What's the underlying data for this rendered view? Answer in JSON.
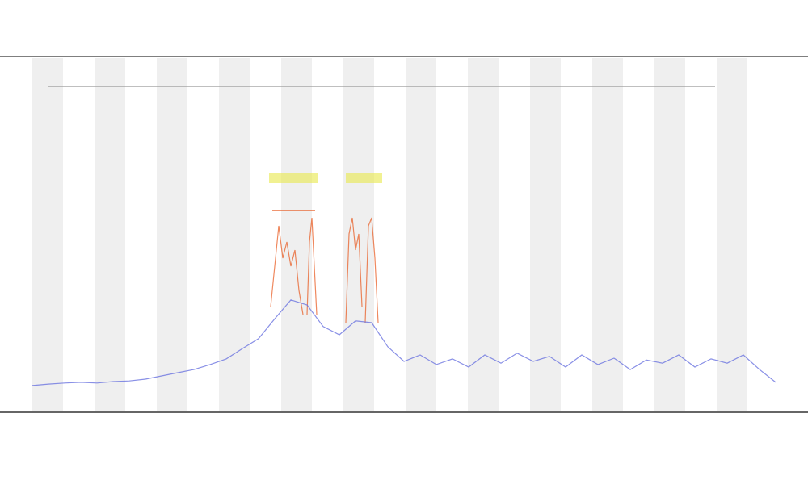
{
  "chart_data": {
    "type": "line",
    "x": [
      0,
      1,
      2,
      3,
      4,
      5,
      6,
      7,
      8,
      9,
      10,
      11,
      12,
      13,
      14,
      15,
      16,
      17,
      18,
      19,
      20,
      21,
      22,
      23,
      24,
      25,
      26,
      27,
      28,
      29,
      30,
      31,
      32,
      33,
      34,
      35,
      36,
      37,
      38,
      39,
      40,
      41,
      42,
      43,
      44,
      45,
      46
    ],
    "values": [
      7.3,
      7.7,
      8.0,
      8.2,
      8.0,
      8.4,
      8.6,
      9.1,
      10.0,
      10.9,
      11.8,
      13.2,
      14.8,
      17.7,
      20.5,
      26.1,
      31.4,
      30.0,
      23.9,
      21.6,
      25.5,
      25.0,
      18.2,
      14.1,
      15.9,
      13.2,
      14.8,
      12.5,
      15.9,
      13.6,
      16.4,
      14.1,
      15.5,
      12.5,
      15.9,
      13.2,
      15.0,
      11.8,
      14.5,
      13.6,
      15.9,
      12.5,
      14.8,
      13.6,
      15.9,
      11.8,
      8.2
    ],
    "color": "#6b74e0",
    "xlim": [
      0,
      46
    ],
    "ylim": [
      0,
      100
    ]
  }
}
